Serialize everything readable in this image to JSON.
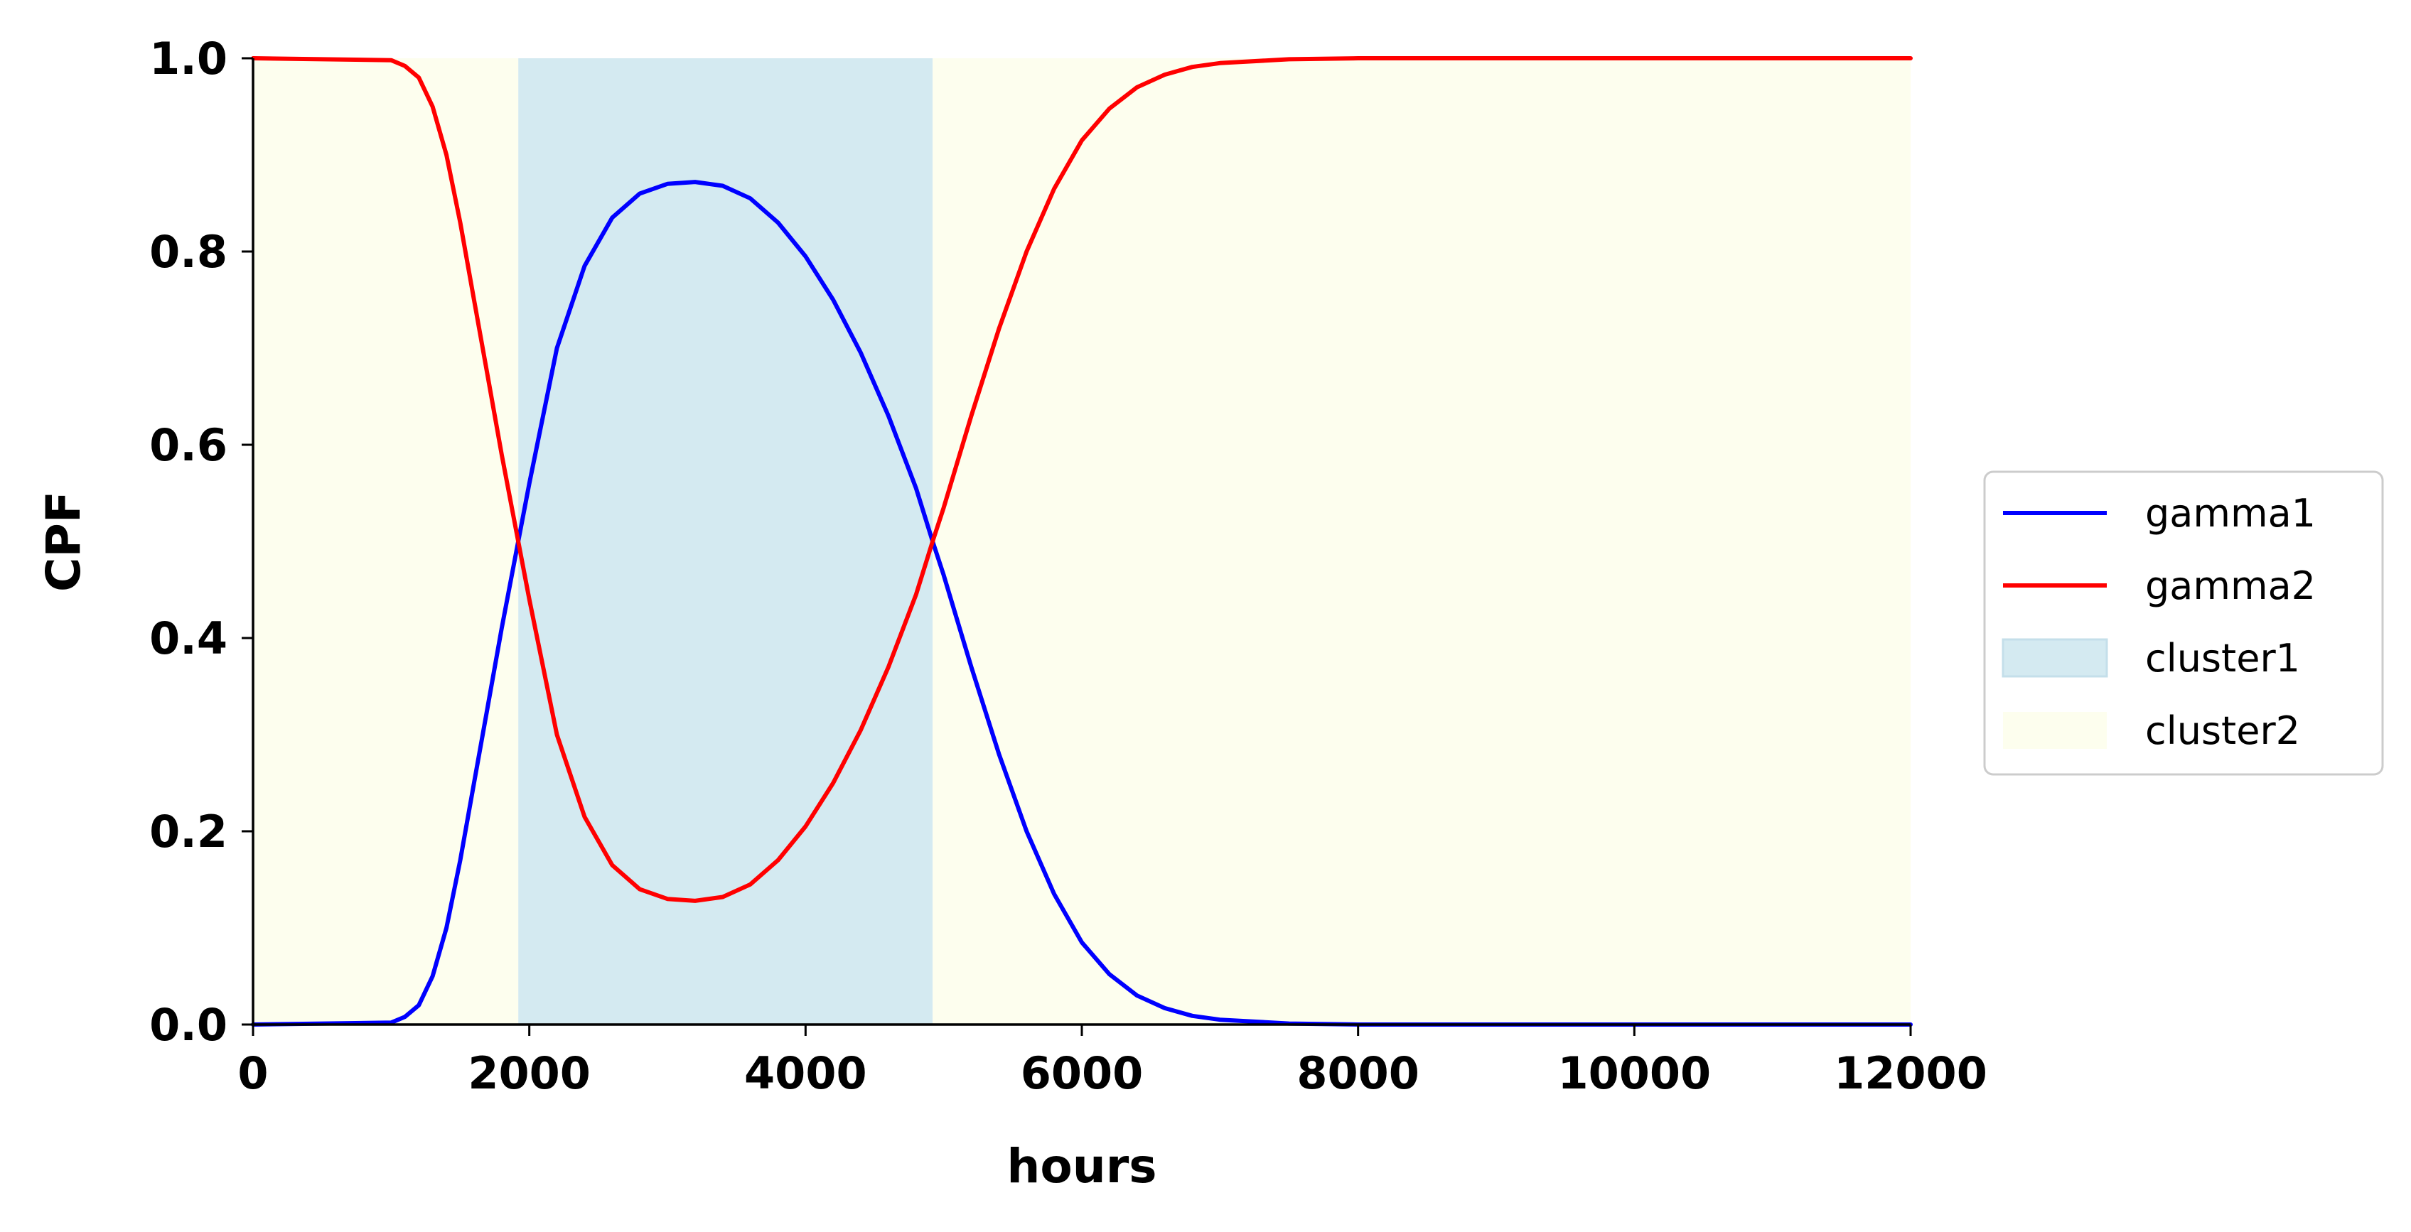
{
  "chart_data": {
    "type": "line",
    "title": "",
    "xlabel": "hours",
    "ylabel": "CPF",
    "xlim": [
      0,
      12000
    ],
    "ylim": [
      0.0,
      1.0
    ],
    "x_ticks": [
      0,
      2000,
      4000,
      6000,
      8000,
      10000,
      12000
    ],
    "x_tick_labels": [
      "0",
      "2000",
      "4000",
      "6000",
      "8000",
      "10000",
      "12000"
    ],
    "y_ticks": [
      0.0,
      0.2,
      0.4,
      0.6,
      0.8,
      1.0
    ],
    "y_tick_labels": [
      "0.0",
      "0.2",
      "0.4",
      "0.6",
      "0.8",
      "1.0"
    ],
    "grid": false,
    "legend_position": "center-right outside plot",
    "series": [
      {
        "name": "gamma1",
        "color": "#0000ff",
        "x": [
          0,
          1000,
          1100,
          1200,
          1300,
          1400,
          1500,
          1600,
          1700,
          1800,
          1920,
          2000,
          2200,
          2400,
          2600,
          2800,
          3000,
          3200,
          3400,
          3600,
          3800,
          4000,
          4200,
          4400,
          4600,
          4800,
          4920,
          5000,
          5200,
          5400,
          5600,
          5800,
          6000,
          6200,
          6400,
          6600,
          6800,
          7000,
          7500,
          8000,
          9000,
          10000,
          11000,
          12000
        ],
        "values": [
          0.0,
          0.002,
          0.008,
          0.02,
          0.05,
          0.1,
          0.17,
          0.25,
          0.33,
          0.41,
          0.5,
          0.56,
          0.7,
          0.785,
          0.835,
          0.86,
          0.87,
          0.872,
          0.868,
          0.855,
          0.83,
          0.795,
          0.75,
          0.695,
          0.63,
          0.555,
          0.5,
          0.465,
          0.37,
          0.28,
          0.2,
          0.135,
          0.085,
          0.052,
          0.03,
          0.017,
          0.009,
          0.005,
          0.001,
          0.0,
          0.0,
          0.0,
          0.0,
          0.0
        ]
      },
      {
        "name": "gamma2",
        "color": "#ff0000",
        "x": [
          0,
          1000,
          1100,
          1200,
          1300,
          1400,
          1500,
          1600,
          1700,
          1800,
          1920,
          2000,
          2200,
          2400,
          2600,
          2800,
          3000,
          3200,
          3400,
          3600,
          3800,
          4000,
          4200,
          4400,
          4600,
          4800,
          4920,
          5000,
          5200,
          5400,
          5600,
          5800,
          6000,
          6200,
          6400,
          6600,
          6800,
          7000,
          7500,
          8000,
          9000,
          10000,
          11000,
          12000
        ],
        "values": [
          1.0,
          0.998,
          0.992,
          0.98,
          0.95,
          0.9,
          0.83,
          0.75,
          0.67,
          0.59,
          0.5,
          0.44,
          0.3,
          0.215,
          0.165,
          0.14,
          0.13,
          0.128,
          0.132,
          0.145,
          0.17,
          0.205,
          0.25,
          0.305,
          0.37,
          0.445,
          0.5,
          0.535,
          0.63,
          0.72,
          0.8,
          0.865,
          0.915,
          0.948,
          0.97,
          0.983,
          0.991,
          0.995,
          0.999,
          1.0,
          1.0,
          1.0,
          1.0,
          1.0
        ]
      }
    ],
    "regions": [
      {
        "name": "cluster1",
        "color": "#d4eaf1",
        "spans": [
          [
            1920,
            4920
          ]
        ]
      },
      {
        "name": "cluster2",
        "color": "#fdfeee",
        "spans": [
          [
            0,
            1920
          ],
          [
            4920,
            12000
          ]
        ]
      }
    ]
  }
}
